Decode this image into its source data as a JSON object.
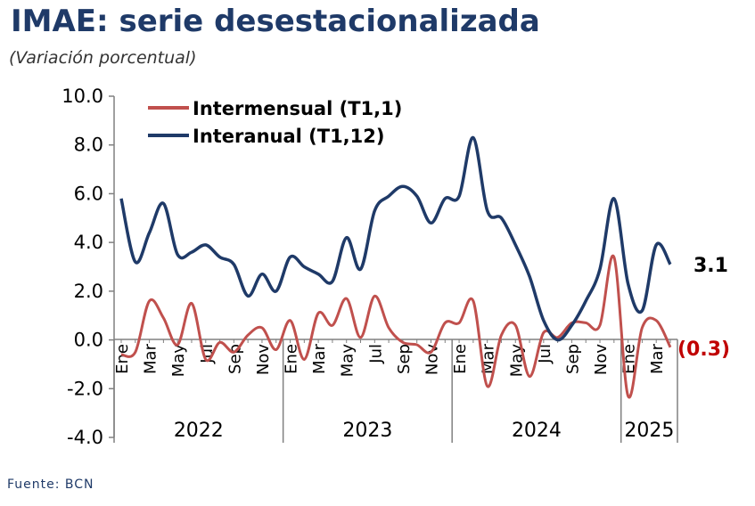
{
  "title": "IMAE: serie desestacionalizada",
  "subtitle": "(Variación porcentual)",
  "source": "Fuente: BCN",
  "chart_data": {
    "type": "line",
    "title": "IMAE: serie desestacionalizada",
    "subtitle": "(Variación porcentual)",
    "ylim": [
      -4.0,
      10.0
    ],
    "y_ticks": [
      "10.0",
      "8.0",
      "6.0",
      "4.0",
      "2.0",
      "0.0",
      "-2.0",
      "-4.0"
    ],
    "y_tick_values": [
      10,
      8,
      6,
      4,
      2,
      0,
      -2,
      -4
    ],
    "month_labels": [
      "Ene",
      "Mar",
      "May",
      "Jul",
      "Sep",
      "Nov",
      "Ene",
      "Mar",
      "May",
      "Jul",
      "Sep",
      "Nov",
      "Ene",
      "Mar",
      "May",
      "Jul",
      "Sep",
      "Nov",
      "Ene",
      "Mar"
    ],
    "years": [
      "2022",
      "2023",
      "2024",
      "2025"
    ],
    "months_per_year": [
      12,
      12,
      12,
      4
    ],
    "legend_position": "top-left",
    "grid": false,
    "series": [
      {
        "name": "Intermensual (T1,1)",
        "color": "#c0504d",
        "end_label": "(0.3)",
        "end_label_color": "#c00000",
        "values": [
          -0.6,
          -0.5,
          1.6,
          0.9,
          -0.2,
          1.5,
          -0.8,
          -0.1,
          -0.5,
          0.2,
          0.5,
          -0.4,
          0.8,
          -0.8,
          1.1,
          0.6,
          1.7,
          0.1,
          1.8,
          0.5,
          -0.1,
          -0.2,
          -0.5,
          0.7,
          0.7,
          1.6,
          -1.9,
          0.2,
          0.6,
          -1.5,
          0.3,
          0.1,
          0.7,
          0.7,
          0.6,
          3.4,
          -2.3,
          0.5,
          0.8,
          -0.3
        ]
      },
      {
        "name": "Interanual (T1,12)",
        "color": "#1f3a68",
        "end_label": "3.1",
        "end_label_color": "#000000",
        "values": [
          5.8,
          3.2,
          4.4,
          5.6,
          3.5,
          3.6,
          3.9,
          3.4,
          3.1,
          1.8,
          2.7,
          2.0,
          3.4,
          3.0,
          2.7,
          2.4,
          4.2,
          2.9,
          5.3,
          5.9,
          6.3,
          5.9,
          4.8,
          5.8,
          5.9,
          8.3,
          5.3,
          5.0,
          3.9,
          2.6,
          0.8,
          0.0,
          0.6,
          1.6,
          2.9,
          5.8,
          2.3,
          1.2,
          3.9,
          3.1
        ]
      }
    ]
  }
}
